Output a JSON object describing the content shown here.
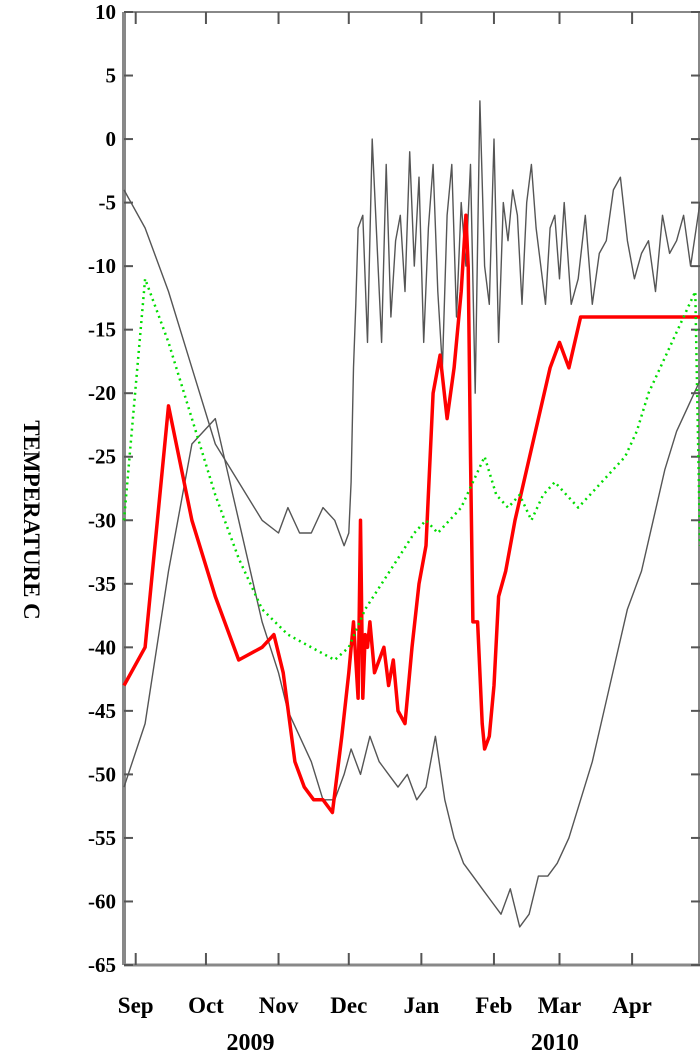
{
  "chart_data": {
    "type": "line",
    "title": "",
    "xlabel": "",
    "ylabel": "TEMPERATURE C",
    "ylim": [
      -65,
      10
    ],
    "yticks": [
      10,
      5,
      0,
      -5,
      -10,
      -15,
      -20,
      -25,
      -30,
      -35,
      -40,
      -45,
      -50,
      -55,
      -60,
      -65
    ],
    "xlim": [
      "2009-08-27",
      "2010-04-30"
    ],
    "x_tick_labels": [
      {
        "label": "Sep",
        "date": "2009-09-01"
      },
      {
        "label": "Oct",
        "date": "2009-10-01"
      },
      {
        "label": "Nov",
        "date": "2009-11-01"
      },
      {
        "label": "Dec",
        "date": "2009-12-01"
      },
      {
        "label": "Jan",
        "date": "2010-01-01"
      },
      {
        "label": "Feb",
        "date": "2010-02-01"
      },
      {
        "label": "Mar",
        "date": "2010-03-01"
      },
      {
        "label": "Apr",
        "date": "2010-04-01"
      }
    ],
    "year_labels": [
      "2009",
      "2010"
    ],
    "grid": false,
    "series": [
      {
        "color": "#555555",
        "style": "solid",
        "x": [
          "2009-08-27",
          "2009-09-05",
          "2009-09-15",
          "2009-09-25",
          "2009-10-05",
          "2009-10-15",
          "2009-10-25",
          "2009-11-01",
          "2009-11-05",
          "2009-11-10",
          "2009-11-15",
          "2009-11-20",
          "2009-11-25",
          "2009-11-29",
          "2009-12-01",
          "2009-12-02",
          "2009-12-03",
          "2009-12-04",
          "2009-12-05",
          "2009-12-07",
          "2009-12-09",
          "2009-12-11",
          "2009-12-13",
          "2009-12-15",
          "2009-12-17",
          "2009-12-19",
          "2009-12-21",
          "2009-12-23",
          "2009-12-25",
          "2009-12-27",
          "2009-12-29",
          "2009-12-31",
          "2010-01-02",
          "2010-01-04",
          "2010-01-06",
          "2010-01-08",
          "2010-01-10",
          "2010-01-12",
          "2010-01-14",
          "2010-01-16",
          "2010-01-18",
          "2010-01-20",
          "2010-01-22",
          "2010-01-24",
          "2010-01-26",
          "2010-01-28",
          "2010-01-30",
          "2010-02-01",
          "2010-02-03",
          "2010-02-05",
          "2010-02-07",
          "2010-02-09",
          "2010-02-11",
          "2010-02-13",
          "2010-02-15",
          "2010-02-17",
          "2010-02-19",
          "2010-02-21",
          "2010-02-23",
          "2010-02-25",
          "2010-02-27",
          "2010-03-01",
          "2010-03-03",
          "2010-03-06",
          "2010-03-09",
          "2010-03-12",
          "2010-03-15",
          "2010-03-18",
          "2010-03-21",
          "2010-03-24",
          "2010-03-27",
          "2010-03-30",
          "2010-04-02",
          "2010-04-05",
          "2010-04-08",
          "2010-04-11",
          "2010-04-14",
          "2010-04-17",
          "2010-04-20",
          "2010-04-23",
          "2010-04-26",
          "2010-04-30"
        ],
        "y": [
          -4,
          -7,
          -12,
          -18,
          -24,
          -27,
          -30,
          -31,
          -29,
          -31,
          -31,
          -29,
          -30,
          -32,
          -31,
          -27,
          -18,
          -13,
          -7,
          -6,
          -16,
          0,
          -8,
          -16,
          -2,
          -14,
          -8,
          -6,
          -12,
          -1,
          -10,
          -3,
          -16,
          -7,
          -2,
          -12,
          -18,
          -6,
          -2,
          -14,
          -5,
          -10,
          -2,
          -20,
          3,
          -10,
          -13,
          0,
          -16,
          -5,
          -8,
          -4,
          -6,
          -13,
          -5,
          -2,
          -7,
          -10,
          -13,
          -7,
          -6,
          -11,
          -5,
          -13,
          -11,
          -6,
          -13,
          -9,
          -8,
          -4,
          -3,
          -8,
          -11,
          -9,
          -8,
          -12,
          -6,
          -9,
          -8,
          -6,
          -10,
          -5
        ]
      },
      {
        "color": "#555555",
        "style": "solid",
        "x": [
          "2009-08-27",
          "2009-09-05",
          "2009-09-15",
          "2009-09-25",
          "2009-10-05",
          "2009-10-15",
          "2009-10-25",
          "2009-11-01",
          "2009-11-05",
          "2009-11-10",
          "2009-11-15",
          "2009-11-20",
          "2009-11-25",
          "2009-11-29",
          "2009-12-02",
          "2009-12-06",
          "2009-12-10",
          "2009-12-14",
          "2009-12-18",
          "2009-12-22",
          "2009-12-26",
          "2009-12-30",
          "2010-01-03",
          "2010-01-07",
          "2010-01-11",
          "2010-01-15",
          "2010-01-19",
          "2010-01-23",
          "2010-01-27",
          "2010-01-31",
          "2010-02-04",
          "2010-02-08",
          "2010-02-12",
          "2010-02-16",
          "2010-02-20",
          "2010-02-24",
          "2010-02-28",
          "2010-03-05",
          "2010-03-10",
          "2010-03-15",
          "2010-03-20",
          "2010-03-25",
          "2010-03-30",
          "2010-04-05",
          "2010-04-10",
          "2010-04-15",
          "2010-04-20",
          "2010-04-25",
          "2010-04-30"
        ],
        "y": [
          -51,
          -46,
          -34,
          -24,
          -22,
          -30,
          -38,
          -42,
          -45,
          -47,
          -49,
          -52,
          -52,
          -50,
          -48,
          -50,
          -47,
          -49,
          -50,
          -51,
          -50,
          -52,
          -51,
          -47,
          -52,
          -55,
          -57,
          -58,
          -59,
          -60,
          -61,
          -59,
          -62,
          -61,
          -58,
          -58,
          -57,
          -55,
          -52,
          -49,
          -45,
          -41,
          -37,
          -34,
          -30,
          -26,
          -23,
          -21,
          -19
        ]
      },
      {
        "color": "#ff0000",
        "style": "solid",
        "x": [
          "2009-08-27",
          "2009-09-05",
          "2009-09-15",
          "2009-09-25",
          "2009-10-05",
          "2009-10-15",
          "2009-10-25",
          "2009-10-30",
          "2009-11-03",
          "2009-11-08",
          "2009-11-12",
          "2009-11-16",
          "2009-11-20",
          "2009-11-24",
          "2009-11-28",
          "2009-12-01",
          "2009-12-03",
          "2009-12-05",
          "2009-12-06",
          "2009-12-07",
          "2009-12-08",
          "2009-12-09",
          "2009-12-10",
          "2009-12-12",
          "2009-12-14",
          "2009-12-16",
          "2009-12-18",
          "2009-12-20",
          "2009-12-22",
          "2009-12-25",
          "2009-12-28",
          "2009-12-31",
          "2010-01-03",
          "2010-01-06",
          "2010-01-09",
          "2010-01-12",
          "2010-01-15",
          "2010-01-18",
          "2010-01-20",
          "2010-01-21",
          "2010-01-22",
          "2010-01-23",
          "2010-01-25",
          "2010-01-26",
          "2010-01-27",
          "2010-01-28",
          "2010-01-30",
          "2010-02-01",
          "2010-02-03",
          "2010-02-06",
          "2010-02-10",
          "2010-02-15",
          "2010-02-20",
          "2010-02-25",
          "2010-03-01",
          "2010-03-05",
          "2010-03-10",
          "2010-03-15",
          "2010-03-20",
          "2010-03-25",
          "2010-03-30",
          "2010-04-05",
          "2010-04-10",
          "2010-04-15",
          "2010-04-20",
          "2010-04-25",
          "2010-04-30"
        ],
        "y": [
          -43,
          -40,
          -21,
          -30,
          -36,
          -41,
          -40,
          -39,
          -42,
          -49,
          -51,
          -52,
          -52,
          -53,
          -47,
          -42,
          -38,
          -44,
          -30,
          -44,
          -39,
          -40,
          -38,
          -42,
          -41,
          -40,
          -43,
          -41,
          -45,
          -46,
          -40,
          -35,
          -32,
          -20,
          -17,
          -22,
          -18,
          -12,
          -6,
          -10,
          -25,
          -38,
          -38,
          -42,
          -46,
          -48,
          -47,
          -43,
          -36,
          -34,
          -30,
          -26,
          -22,
          -18,
          -16,
          -18,
          -14,
          -14,
          -14,
          -14,
          -14,
          -14,
          -14,
          -14,
          -14,
          -14,
          -14
        ]
      },
      {
        "color": "#00dd00",
        "style": "dotted",
        "x": [
          "2009-08-27",
          "2009-09-05",
          "2009-09-15",
          "2009-09-25",
          "2009-10-05",
          "2009-10-15",
          "2009-10-25",
          "2009-11-05",
          "2009-11-15",
          "2009-11-25",
          "2009-12-01",
          "2009-12-08",
          "2009-12-15",
          "2009-12-22",
          "2009-12-29",
          "2010-01-03",
          "2010-01-08",
          "2010-01-13",
          "2010-01-18",
          "2010-01-23",
          "2010-01-28",
          "2010-02-02",
          "2010-02-07",
          "2010-02-12",
          "2010-02-17",
          "2010-02-22",
          "2010-02-27",
          "2010-03-04",
          "2010-03-09",
          "2010-03-14",
          "2010-03-19",
          "2010-03-24",
          "2010-03-29",
          "2010-04-03",
          "2010-04-08",
          "2010-04-13",
          "2010-04-18",
          "2010-04-23",
          "2010-04-28",
          "2010-04-30"
        ],
        "y": [
          -30,
          -11,
          -16,
          -22,
          -28,
          -33,
          -37,
          -39,
          -40,
          -41,
          -40,
          -37,
          -35,
          -33,
          -31,
          -30,
          -31,
          -30,
          -29,
          -27,
          -25,
          -28,
          -29,
          -28,
          -30,
          -28,
          -27,
          -28,
          -29,
          -28,
          -27,
          -26,
          -25,
          -23,
          -20,
          -18,
          -16,
          -14,
          -12,
          -32
        ]
      }
    ]
  }
}
